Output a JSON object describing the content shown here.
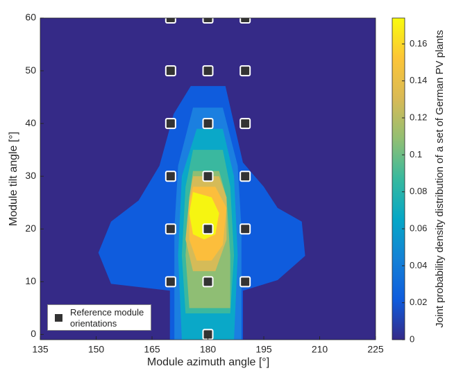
{
  "chart_data": {
    "type": "contour",
    "xlabel": "Module azimuth angle [°]",
    "ylabel": "Module tilt angle [°]",
    "xlim": [
      135,
      225
    ],
    "ylim": [
      -1,
      60
    ],
    "xticks": [
      135,
      150,
      165,
      180,
      195,
      210,
      225
    ],
    "yticks": [
      0,
      10,
      20,
      30,
      40,
      50,
      60
    ],
    "background_color": "#352a87",
    "contours": [
      {
        "level": 0.02,
        "color": "#0f5cdd",
        "x": [
          175.4,
          184.7,
          189.4,
          195,
          198.7,
          205.2,
          206.1,
          198.7,
          189.4,
          189.4,
          169.8,
          169.8,
          154,
          150.6,
          154,
          161.4,
          167,
          170.8
        ],
        "y": [
          47.1,
          47.1,
          32.6,
          28,
          24,
          21.4,
          14.9,
          10.3,
          8.3,
          -1,
          -1,
          8.3,
          9.6,
          15.5,
          21.4,
          25.4,
          32,
          41.8
        ]
      },
      {
        "level": 0.04,
        "color": "#1b7fe0",
        "x": [
          176,
          184,
          188,
          189,
          189,
          171,
          171,
          172
        ],
        "y": [
          43,
          43,
          32,
          20,
          -1,
          -1,
          20,
          32
        ]
      },
      {
        "level": 0.06,
        "color": "#0aa8c8",
        "x": [
          177,
          184,
          187,
          188,
          187,
          173,
          172,
          173
        ],
        "y": [
          39,
          39,
          30,
          15,
          -1,
          -1,
          15,
          30
        ]
      },
      {
        "level": 0.08,
        "color": "#3ab89f",
        "x": [
          176,
          184,
          186,
          187,
          186,
          174,
          173,
          174
        ],
        "y": [
          35,
          35,
          28,
          15,
          4,
          4,
          15,
          28
        ]
      },
      {
        "level": 0.1,
        "color": "#8fbe74",
        "x": [
          176,
          183,
          185,
          186,
          186,
          175,
          174,
          175
        ],
        "y": [
          31,
          31,
          26,
          15,
          5,
          5,
          15,
          26
        ]
      },
      {
        "level": 0.12,
        "color": "#d5bb58",
        "x": [
          176,
          183,
          185,
          185,
          182,
          176,
          174,
          175
        ],
        "y": [
          30,
          30,
          26,
          18,
          12,
          12,
          18,
          26
        ]
      },
      {
        "level": 0.14,
        "color": "#fcbe3c",
        "x": [
          176,
          182,
          185,
          184,
          181,
          177,
          175,
          175
        ],
        "y": [
          28,
          28,
          24,
          17,
          14,
          14,
          18,
          25
        ]
      },
      {
        "level": 0.16,
        "color": "#f6f511",
        "x": [
          176,
          181,
          183,
          182,
          179,
          176,
          175
        ],
        "y": [
          27,
          26,
          23,
          19,
          18,
          19,
          23
        ]
      }
    ],
    "series": [
      {
        "name": "Reference module orientations",
        "color": "#333333",
        "x": [
          180,
          170,
          180,
          190,
          170,
          180,
          190,
          170,
          180,
          190,
          170,
          180,
          190,
          170,
          180,
          190,
          170,
          180,
          190
        ],
        "y": [
          0,
          10,
          10,
          10,
          20,
          20,
          20,
          30,
          30,
          30,
          40,
          40,
          40,
          50,
          50,
          50,
          60,
          60,
          60
        ]
      }
    ],
    "legend": "lower left",
    "colorbar": {
      "label": "Joint probability density distribution of a set of German PV plants",
      "clim": [
        0,
        0.174
      ],
      "ticks": [
        0,
        0.02,
        0.04,
        0.06,
        0.08,
        0.1,
        0.12,
        0.14,
        0.16
      ],
      "colors": [
        "#352a87",
        "#0f5cdd",
        "#1481d6",
        "#06a7c6",
        "#38b99e",
        "#92bf73",
        "#d9ba56",
        "#fcc538",
        "#f9fb0e"
      ]
    }
  }
}
